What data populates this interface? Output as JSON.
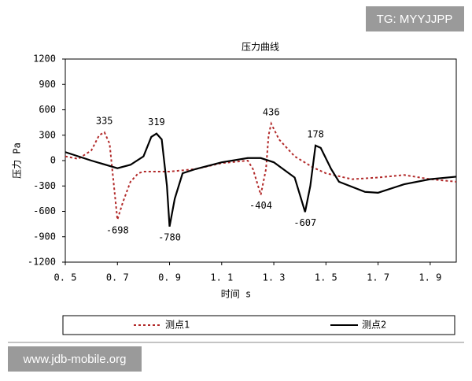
{
  "chart_data": {
    "type": "line",
    "title": "压力曲线",
    "x_label": "时间 s",
    "y_label": "压力 Pa",
    "xlim": [
      0.5,
      2.0
    ],
    "xticks": [
      {
        "value": 0.5,
        "label": "0. 5"
      },
      {
        "value": 0.7,
        "label": "0. 7"
      },
      {
        "value": 0.9,
        "label": "0. 9"
      },
      {
        "value": 1.1,
        "label": "1. 1"
      },
      {
        "value": 1.3,
        "label": "1. 3"
      },
      {
        "value": 1.5,
        "label": "1. 5"
      },
      {
        "value": 1.7,
        "label": "1. 7"
      },
      {
        "value": 1.9,
        "label": "1. 9"
      }
    ],
    "ylim": [
      -1200,
      1200
    ],
    "yticks": [
      -1200,
      -900,
      -600,
      -300,
      0,
      300,
      600,
      900,
      1200
    ],
    "series": [
      {
        "name": "测点1",
        "color": "#b22a2a",
        "dash": true,
        "x": [
          0.5,
          0.55,
          0.6,
          0.63,
          0.65,
          0.67,
          0.69,
          0.7,
          0.72,
          0.75,
          0.78,
          0.8,
          0.9,
          1.0,
          1.1,
          1.2,
          1.22,
          1.25,
          1.27,
          1.28,
          1.29,
          1.32,
          1.38,
          1.45,
          1.5,
          1.6,
          1.7,
          1.8,
          1.9,
          2.0
        ],
        "values": [
          50,
          20,
          120,
          300,
          335,
          200,
          -400,
          -698,
          -500,
          -250,
          -150,
          -130,
          -130,
          -100,
          -30,
          0,
          -100,
          -404,
          -100,
          300,
          436,
          250,
          50,
          -80,
          -150,
          -220,
          -200,
          -170,
          -220,
          -250
        ]
      },
      {
        "name": "测点2",
        "color": "#000000",
        "dash": false,
        "x": [
          0.5,
          0.6,
          0.7,
          0.75,
          0.8,
          0.83,
          0.85,
          0.87,
          0.89,
          0.9,
          0.92,
          0.95,
          1.0,
          1.1,
          1.2,
          1.25,
          1.3,
          1.38,
          1.42,
          1.44,
          1.46,
          1.48,
          1.52,
          1.55,
          1.65,
          1.7,
          1.8,
          1.9,
          2.0
        ],
        "values": [
          100,
          0,
          -90,
          -50,
          50,
          280,
          319,
          250,
          -300,
          -780,
          -450,
          -150,
          -100,
          -20,
          30,
          30,
          -20,
          -200,
          -607,
          -300,
          178,
          150,
          -100,
          -250,
          -370,
          -380,
          -280,
          -220,
          -190
        ]
      }
    ],
    "annotations": [
      {
        "x": 0.65,
        "value": 335
      },
      {
        "x": 0.7,
        "value": -698
      },
      {
        "x": 0.85,
        "value": 319
      },
      {
        "x": 0.9,
        "value": -780
      },
      {
        "x": 1.25,
        "value": -404
      },
      {
        "x": 1.29,
        "value": 436
      },
      {
        "x": 1.42,
        "value": -607
      },
      {
        "x": 1.46,
        "value": 178
      }
    ],
    "watermarks": [
      "TG: MYYJJPP",
      "www.jdb-mobile.org"
    ]
  }
}
